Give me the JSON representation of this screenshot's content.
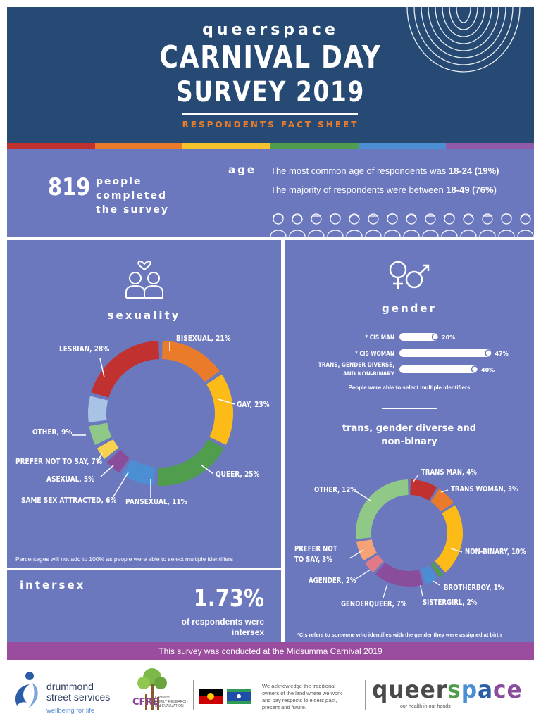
{
  "header": {
    "brand": "queerspace",
    "title_line1": "CARNIVAL DAY",
    "title_line2": "SURVEY 2019",
    "subtitle": "RESPONDENTS FACT SHEET"
  },
  "rainbow_colors": [
    "#c0312f",
    "#ea7b2b",
    "#f4c32d",
    "#4f9d4d",
    "#4c8ed4",
    "#8f5aa8"
  ],
  "summary": {
    "count": "819",
    "count_text_l1": "people",
    "count_text_l2": "completed",
    "count_text_l3": "the survey",
    "age_label": "age",
    "age_line1_text": "The most common age of respondents was",
    "age_line1_value": "18-24 (19%)",
    "age_line2_text": "The majority of respondents were between",
    "age_line2_value": "18-49 (76%)"
  },
  "sexuality": {
    "heading": "sexuality",
    "note": "Percentages will not add to 100% as people were able to select multiple identifiers"
  },
  "intersex": {
    "heading": "intersex",
    "value": "1.73%",
    "text_l1": "of respondents were",
    "text_l2": "intersex"
  },
  "gender": {
    "heading": "gender",
    "note": "People were able to select multiple identifiers",
    "tgd_heading_l1": "trans, gender diverse and",
    "tgd_heading_l2": "non-binary",
    "cis_note": "*Cis refers to someone who identifies with the gender they were assigned at birth"
  },
  "chart_data": [
    {
      "type": "pie",
      "title": "sexuality",
      "categories": [
        "Bisexual",
        "Gay",
        "Queer",
        "Pansexual",
        "Same sex attracted",
        "Asexual",
        "Prefer not to say",
        "Other",
        "Lesbian"
      ],
      "display_labels": [
        "BISEXUAL, 21%",
        "GAY, 23%",
        "QUEER, 25%",
        "PANSEXUAL, 11%",
        "SAME SEX ATTRACTED, 6%",
        "ASEXUAL, 5%",
        "PREFER NOT TO SAY, 7%",
        "OTHER, 9%",
        "LESBIAN, 28%"
      ],
      "values": [
        21,
        23,
        25,
        11,
        6,
        5,
        7,
        9,
        28
      ],
      "colors": [
        "#ea7b2b",
        "#fdbb17",
        "#4f9d4d",
        "#4c8ed4",
        "#8a4d9b",
        "#f7d24f",
        "#90c987",
        "#a9c3e6",
        "#c0312f"
      ],
      "unit": "%"
    },
    {
      "type": "bar",
      "title": "gender",
      "categories": [
        "* CIS MAN",
        "* CIS WOMAN",
        "TRANS, GENDER DIVERSE, AND NON-BINARY"
      ],
      "values": [
        20,
        47,
        40
      ],
      "value_labels": [
        "20%",
        "47%",
        "40%"
      ],
      "unit": "%"
    },
    {
      "type": "pie",
      "title": "trans, gender diverse and non-binary",
      "categories": [
        "Trans man",
        "Trans woman",
        "Non-binary",
        "Brotherboy",
        "Sistergirl",
        "Genderqueer",
        "Agender",
        "Prefer not to say",
        "Other"
      ],
      "display_labels": [
        "TRANS MAN, 4%",
        "TRANS WOMAN, 3%",
        "NON-BINARY, 10%",
        "BROTHERBOY, 1%",
        "SISTERGIRL, 2%",
        "GENDERQUEER, 7%",
        "AGENDER, 2%",
        "PREFER NOT TO SAY, 3%",
        "OTHER, 12%"
      ],
      "values": [
        4,
        3,
        10,
        1,
        2,
        7,
        2,
        3,
        12
      ],
      "colors": [
        "#c0312f",
        "#ea7b2b",
        "#fdbb17",
        "#4f9d4d",
        "#4c8ed4",
        "#8a4d9b",
        "#e07a86",
        "#f5a277",
        "#90c987"
      ],
      "unit": "%"
    }
  ],
  "footer": {
    "bar_text": "This survey was conducted at the Midsumma Carnival 2019",
    "dss_l1": "drummond",
    "dss_l2": "street services",
    "dss_tag": "wellbeing for life",
    "cfre_abbr": "CFRE",
    "cfre_l1": "Centre for",
    "cfre_l2": "FAMILY RESEARCH",
    "cfre_l3": "and EVALUATION",
    "ack_l1": "We acknowledge the traditional",
    "ack_l2": "owners of the land where we work",
    "ack_l3": "and pay respects to elders past,",
    "ack_l4": "present and future.",
    "qs_logo": "queerspace",
    "qs_tag": "our health in our hands"
  }
}
